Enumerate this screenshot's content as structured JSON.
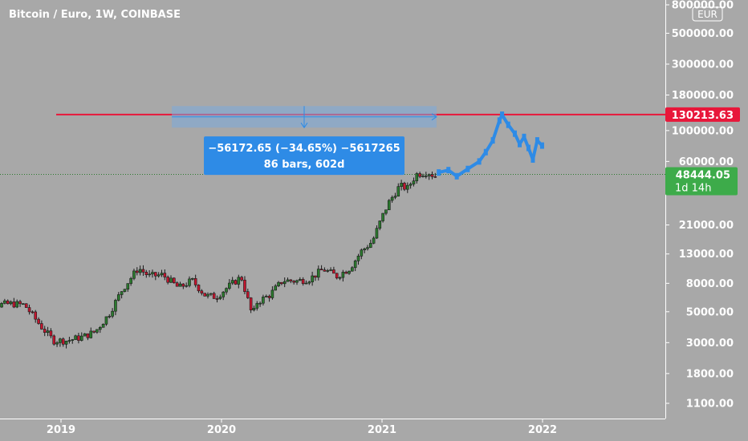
{
  "chart_data": {
    "type": "candlestick",
    "title": "Bitcoin / Euro, 1W, COINBASE",
    "currency": "EUR",
    "y_scale": "log",
    "ylim": [
      900,
      900000
    ],
    "x_range": [
      "2018-06-10",
      "2022-11-20"
    ],
    "y_ticks": [
      {
        "label": "800000.00",
        "value": 800000
      },
      {
        "label": "500000.00",
        "value": 500000
      },
      {
        "label": "300000.00",
        "value": 300000
      },
      {
        "label": "180000.00",
        "value": 180000
      },
      {
        "label": "100000.00",
        "value": 100000
      },
      {
        "label": "60000.00",
        "value": 60000
      },
      {
        "label": "21000.00",
        "value": 21000
      },
      {
        "label": "13000.00",
        "value": 13000
      },
      {
        "label": "8000.00",
        "value": 8000
      },
      {
        "label": "5000.00",
        "value": 5000
      },
      {
        "label": "3000.00",
        "value": 3000
      },
      {
        "label": "1800.00",
        "value": 1800
      },
      {
        "label": "1100.00",
        "value": 1100
      }
    ],
    "x_ticks": [
      {
        "label": "2019",
        "date": "2019-01-01"
      },
      {
        "label": "2020",
        "date": "2020-01-01"
      },
      {
        "label": "2021",
        "date": "2021-01-01"
      },
      {
        "label": "2022",
        "date": "2022-01-01"
      }
    ],
    "price_series": [
      {
        "date": "2018-06-10",
        "value": 5800
      },
      {
        "date": "2018-07-10",
        "value": 6800
      },
      {
        "date": "2018-08-10",
        "value": 5600
      },
      {
        "date": "2018-09-10",
        "value": 5700
      },
      {
        "date": "2018-10-10",
        "value": 5600
      },
      {
        "date": "2018-11-20",
        "value": 3800
      },
      {
        "date": "2018-12-15",
        "value": 3100
      },
      {
        "date": "2019-01-15",
        "value": 3100
      },
      {
        "date": "2019-02-20",
        "value": 3300
      },
      {
        "date": "2019-03-20",
        "value": 3600
      },
      {
        "date": "2019-04-20",
        "value": 4800
      },
      {
        "date": "2019-05-20",
        "value": 7200
      },
      {
        "date": "2019-06-26",
        "value": 10300
      },
      {
        "date": "2019-07-20",
        "value": 9000
      },
      {
        "date": "2019-08-20",
        "value": 9200
      },
      {
        "date": "2019-09-26",
        "value": 7400
      },
      {
        "date": "2019-10-26",
        "value": 8400
      },
      {
        "date": "2019-11-26",
        "value": 6500
      },
      {
        "date": "2019-12-20",
        "value": 6400
      },
      {
        "date": "2020-01-15",
        "value": 7500
      },
      {
        "date": "2020-02-15",
        "value": 8900
      },
      {
        "date": "2020-03-12",
        "value": 4600
      },
      {
        "date": "2020-03-20",
        "value": 5800
      },
      {
        "date": "2020-04-20",
        "value": 6600
      },
      {
        "date": "2020-05-20",
        "value": 8400
      },
      {
        "date": "2020-06-20",
        "value": 8300
      },
      {
        "date": "2020-07-20",
        "value": 8600
      },
      {
        "date": "2020-08-20",
        "value": 10100
      },
      {
        "date": "2020-09-20",
        "value": 9000
      },
      {
        "date": "2020-10-20",
        "value": 10300
      },
      {
        "date": "2020-11-15",
        "value": 13600
      },
      {
        "date": "2020-12-10",
        "value": 16000
      },
      {
        "date": "2020-12-31",
        "value": 23500
      },
      {
        "date": "2021-01-15",
        "value": 30000
      },
      {
        "date": "2021-02-10",
        "value": 40000
      },
      {
        "date": "2021-02-28",
        "value": 38500
      },
      {
        "date": "2021-03-20",
        "value": 48500
      },
      {
        "date": "2021-04-15",
        "value": 50500
      },
      {
        "date": "2021-05-05",
        "value": 46000
      }
    ],
    "projection_series": [
      {
        "date": "2021-05-10",
        "value": 50000
      },
      {
        "date": "2021-06-01",
        "value": 52000
      },
      {
        "date": "2021-06-20",
        "value": 47000
      },
      {
        "date": "2021-07-15",
        "value": 53000
      },
      {
        "date": "2021-08-10",
        "value": 60000
      },
      {
        "date": "2021-08-25",
        "value": 70000
      },
      {
        "date": "2021-09-10",
        "value": 85000
      },
      {
        "date": "2021-09-25",
        "value": 118000
      },
      {
        "date": "2021-10-01",
        "value": 130000
      },
      {
        "date": "2021-10-15",
        "value": 110000
      },
      {
        "date": "2021-10-30",
        "value": 95000
      },
      {
        "date": "2021-11-10",
        "value": 80000
      },
      {
        "date": "2021-11-20",
        "value": 90000
      },
      {
        "date": "2021-11-30",
        "value": 75000
      },
      {
        "date": "2021-12-10",
        "value": 62000
      },
      {
        "date": "2021-12-20",
        "value": 85000
      },
      {
        "date": "2021-12-31",
        "value": 78000
      }
    ],
    "horizontal_line": {
      "value": 130213.63,
      "label": "130213.63",
      "color": "#e8173a"
    },
    "current_price": {
      "value": 48444.05,
      "label": "48444.05",
      "countdown": "1d 14h",
      "color": "#3dab4a"
    },
    "measure": {
      "start_date": "2019-09-10",
      "end_date": "2021-05-05",
      "high": 150000,
      "low": 105000,
      "line1": "−56172.65 (−34.65%) −5617265",
      "line2": "86 bars, 602d",
      "color": "#2e8be6"
    },
    "colors": {
      "background": "#a8a8a8",
      "up": "#2b7a2e",
      "down": "#c4152e",
      "projection": "#2e8be6",
      "axis_text": "#ffffff"
    }
  }
}
